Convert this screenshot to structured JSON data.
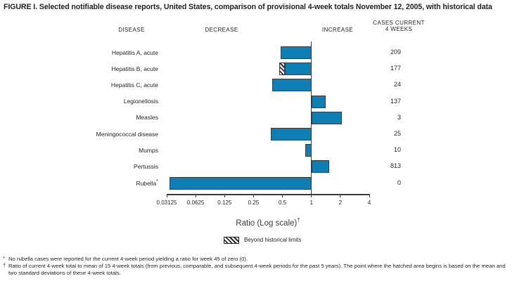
{
  "title": "FIGURE I. Selected notifiable disease reports, United States, comparison of provisional 4-week totals November 12, 2005, with historical data",
  "headers": {
    "disease": "DISEASE",
    "decrease": "DECREASE",
    "increase": "INCREASE",
    "cases_line1": "CASES CURRENT",
    "cases_line2": "4 WEEKS"
  },
  "chart_data": {
    "type": "bar",
    "orientation": "horizontal",
    "baseline": 1,
    "x_axis": {
      "label": "Ratio (Log scale)",
      "label_superscript": "†",
      "scale": "log2",
      "ticks": [
        0.03125,
        0.0625,
        0.125,
        0.25,
        0.5,
        1,
        2,
        4
      ],
      "tick_labels": [
        "0.03125",
        "0.0625",
        "0.125",
        "0.25",
        "0.5",
        "1",
        "2",
        "4"
      ]
    },
    "rows": [
      {
        "disease": "Hepatitis A, acute",
        "marker": "",
        "ratio": 0.48,
        "cases": "209",
        "beyond_limit_ratio": null
      },
      {
        "disease": "Hepatitis B, acute",
        "marker": "",
        "ratio": 0.53,
        "cases": "177",
        "beyond_limit_ratio": 0.46
      },
      {
        "disease": "Hepatitis C, acute",
        "marker": "",
        "ratio": 0.39,
        "cases": "24",
        "beyond_limit_ratio": null
      },
      {
        "disease": "Legionellosis",
        "marker": "",
        "ratio": 1.4,
        "cases": "137",
        "beyond_limit_ratio": null
      },
      {
        "disease": "Measles",
        "marker": "",
        "ratio": 2.08,
        "cases": "3",
        "beyond_limit_ratio": null
      },
      {
        "disease": "Meningococcal disease",
        "marker": "",
        "ratio": 0.38,
        "cases": "25",
        "beyond_limit_ratio": null
      },
      {
        "disease": "Mumps",
        "marker": "",
        "ratio": 0.86,
        "cases": "10",
        "beyond_limit_ratio": null
      },
      {
        "disease": "Pertussis",
        "marker": "",
        "ratio": 1.52,
        "cases": "813",
        "beyond_limit_ratio": null
      },
      {
        "disease": "Rubella",
        "marker": "*",
        "ratio": 0,
        "cases": "0",
        "beyond_limit_ratio": null
      }
    ],
    "legend": {
      "label": "Beyond historical limits"
    },
    "colors": {
      "bar_fill": "#0e7fb5",
      "bar_border": "#3a3a3a",
      "axis": "#3a3a3a"
    }
  },
  "footnotes": [
    {
      "marker": "*",
      "text": "No rubella cases were reported for the current 4-week period yielding a ratio for week 45 of zero (0)."
    },
    {
      "marker": "†",
      "text": "Ratio of current 4-week total to mean of 15 4-week totals (from previous, comparable, and subsequent 4-week periods for the past 5 years). The point where the hatched area begins is based on the mean and two standard deviations of these 4-week totals."
    }
  ]
}
